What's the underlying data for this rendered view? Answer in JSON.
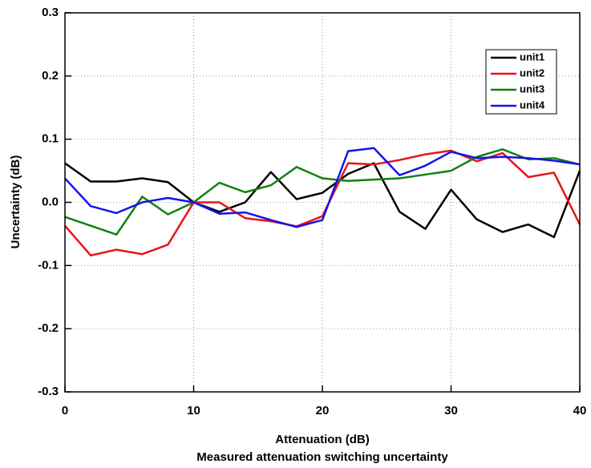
{
  "chart_data": {
    "type": "line",
    "title": "Measured attenuation switching uncertainty",
    "xlabel": "Attenuation (dB)",
    "ylabel": "Uncertainty (dB)",
    "x": [
      0,
      2,
      4,
      6,
      8,
      10,
      12,
      14,
      16,
      18,
      20,
      22,
      24,
      26,
      28,
      30,
      32,
      34,
      36,
      38,
      40
    ],
    "series": [
      {
        "name": "unit1",
        "color": "#000000",
        "values": [
          0.062,
          0.033,
          0.033,
          0.038,
          0.032,
          0.0,
          -0.015,
          0.0,
          0.048,
          0.005,
          0.015,
          0.045,
          0.062,
          -0.015,
          -0.042,
          0.02,
          -0.027,
          -0.047,
          -0.035,
          -0.055,
          0.05
        ]
      },
      {
        "name": "unit2",
        "color": "#e8141b",
        "values": [
          -0.037,
          -0.084,
          -0.075,
          -0.082,
          -0.067,
          0.0,
          0.0,
          -0.025,
          -0.03,
          -0.038,
          -0.022,
          0.062,
          0.06,
          0.067,
          0.076,
          0.082,
          0.065,
          0.078,
          0.04,
          0.047,
          -0.035
        ]
      },
      {
        "name": "unit3",
        "color": "#128012",
        "values": [
          -0.023,
          -0.037,
          -0.051,
          0.009,
          -0.019,
          0.0,
          0.031,
          0.016,
          0.027,
          0.056,
          0.038,
          0.034,
          0.036,
          0.038,
          0.044,
          0.05,
          0.072,
          0.084,
          0.068,
          0.07,
          0.06
        ]
      },
      {
        "name": "unit4",
        "color": "#1414e6",
        "values": [
          0.038,
          -0.006,
          -0.017,
          0.0,
          0.007,
          0.0,
          -0.018,
          -0.016,
          -0.028,
          -0.039,
          -0.028,
          0.081,
          0.086,
          0.043,
          0.058,
          0.08,
          0.07,
          0.072,
          0.07,
          0.066,
          0.06
        ]
      }
    ],
    "xlim": [
      0,
      40
    ],
    "xticks": [
      0,
      10,
      20,
      30,
      40
    ],
    "ylim": [
      -0.3,
      0.3
    ],
    "yticks": [
      -0.3,
      -0.2,
      -0.1,
      {
        "value": 0,
        "label": "0.0"
      },
      0.1,
      0.2,
      0.3
    ],
    "grid": true,
    "legend": "upper right"
  }
}
